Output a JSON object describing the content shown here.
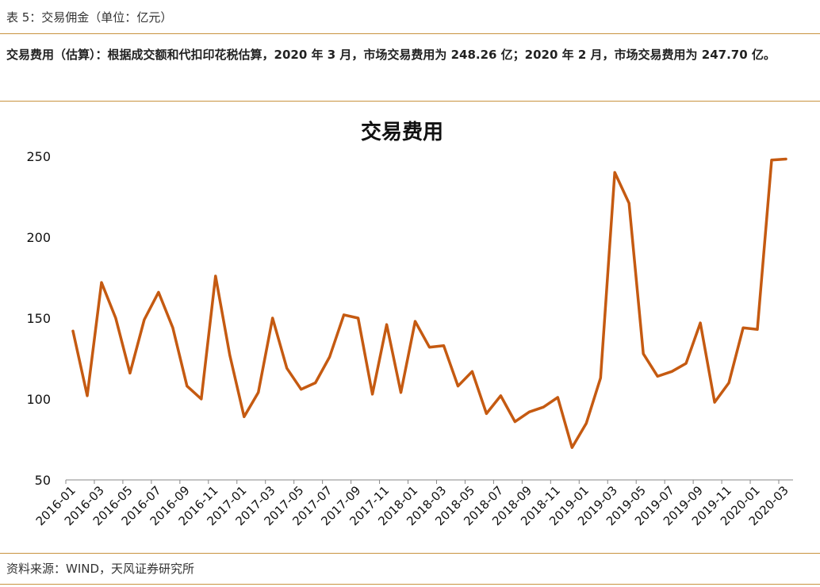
{
  "table_title": "表 5：交易佣金（单位：亿元）",
  "description": "交易费用（估算）：根据成交额和代扣印花税估算，2020 年 3 月，市场交易费用为 248.26 亿；2020 年 2 月，市场交易费用为 247.70 亿。",
  "source": "资料来源：WIND，天风证券研究所",
  "colors": {
    "line": "#c55a11",
    "rule": "#c8933f"
  },
  "chart_data": {
    "type": "line",
    "title": "交易费用",
    "xlabel": "",
    "ylabel": "",
    "ylim": [
      50,
      250
    ],
    "yticks": [
      50,
      100,
      150,
      200,
      250
    ],
    "grid": false,
    "legend": "none",
    "xtick_labels": [
      "2016-01",
      "2016-03",
      "2016-05",
      "2016-07",
      "2016-09",
      "2016-11",
      "2017-01",
      "2017-03",
      "2017-05",
      "2017-07",
      "2017-09",
      "2017-11",
      "2018-01",
      "2018-03",
      "2018-05",
      "2018-07",
      "2018-09",
      "2018-11",
      "2019-01",
      "2019-03",
      "2019-05",
      "2019-07",
      "2019-09",
      "2019-11",
      "2020-01",
      "2020-03"
    ],
    "categories": [
      "2016-01",
      "2016-02",
      "2016-03",
      "2016-04",
      "2016-05",
      "2016-06",
      "2016-07",
      "2016-08",
      "2016-09",
      "2016-10",
      "2016-11",
      "2016-12",
      "2017-01",
      "2017-02",
      "2017-03",
      "2017-04",
      "2017-05",
      "2017-06",
      "2017-07",
      "2017-08",
      "2017-09",
      "2017-10",
      "2017-11",
      "2017-12",
      "2018-01",
      "2018-02",
      "2018-03",
      "2018-04",
      "2018-05",
      "2018-06",
      "2018-07",
      "2018-08",
      "2018-09",
      "2018-10",
      "2018-11",
      "2018-12",
      "2019-01",
      "2019-02",
      "2019-03",
      "2019-04",
      "2019-05",
      "2019-06",
      "2019-07",
      "2019-08",
      "2019-09",
      "2019-10",
      "2019-11",
      "2019-12",
      "2020-01",
      "2020-02",
      "2020-03"
    ],
    "series": [
      {
        "values": [
          142,
          102,
          172,
          150,
          116,
          149,
          166,
          144,
          108,
          100,
          176,
          127,
          89,
          104,
          150,
          119,
          106,
          110,
          126,
          152,
          150,
          103,
          146,
          104,
          148,
          132,
          133,
          108,
          117,
          91,
          102,
          86,
          92,
          95,
          101,
          70,
          85,
          113,
          240,
          221,
          128,
          114,
          117,
          122,
          147,
          98,
          110,
          144,
          143,
          247.7,
          248.26
        ]
      }
    ]
  }
}
